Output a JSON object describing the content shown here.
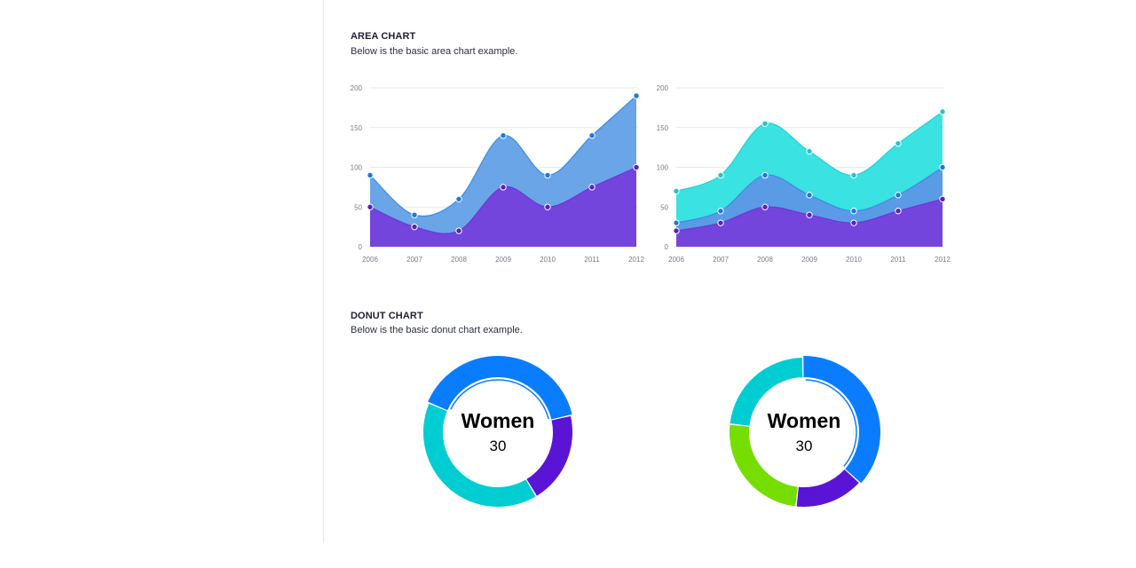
{
  "area_section": {
    "title": "AREA CHART",
    "description": "Below is the basic area chart example."
  },
  "donut_section": {
    "title": "DONUT CHART",
    "description": "Below is the basic donut chart example."
  },
  "chart_data": [
    {
      "type": "area",
      "x": [
        "2006",
        "2007",
        "2008",
        "2009",
        "2010",
        "2011",
        "2012"
      ],
      "ylim": [
        0,
        200
      ],
      "yticks": [
        0,
        50,
        100,
        150,
        200
      ],
      "grid": true,
      "series": [
        {
          "values": [
            90,
            40,
            60,
            140,
            90,
            140,
            190
          ],
          "color": "#6aa5e8",
          "line": "#3c8ce0",
          "marker": "#1a7ae2"
        },
        {
          "values": [
            50,
            25,
            20,
            75,
            50,
            75,
            100
          ],
          "color": "#7445dd",
          "line": "#6a36d8",
          "marker": "#5a1fc7"
        }
      ]
    },
    {
      "type": "area",
      "x": [
        "2006",
        "2007",
        "2008",
        "2009",
        "2010",
        "2011",
        "2012"
      ],
      "ylim": [
        0,
        200
      ],
      "yticks": [
        0,
        50,
        100,
        150,
        200
      ],
      "grid": true,
      "series": [
        {
          "values": [
            70,
            90,
            155,
            120,
            90,
            130,
            170
          ],
          "color": "#3ae2e2",
          "line": "#22d2d6",
          "marker": "#1fc6cc"
        },
        {
          "values": [
            30,
            45,
            90,
            65,
            45,
            65,
            100
          ],
          "color": "#5a9be6",
          "line": "#3c8ce0",
          "marker": "#1a7ae2"
        },
        {
          "values": [
            20,
            30,
            50,
            40,
            30,
            45,
            60
          ],
          "color": "#7445dd",
          "line": "#6a36d8",
          "marker": "#5a1fc7"
        }
      ]
    },
    {
      "type": "pie",
      "variant": "donut",
      "center_label": "Women",
      "center_value": "30",
      "slices": [
        {
          "value": 40,
          "color": "#0a7cff"
        },
        {
          "value": 20,
          "color": "#5a14d6"
        },
        {
          "value": 40,
          "color": "#00cdd2"
        }
      ],
      "highlight": {
        "color": "#0a7cff"
      }
    },
    {
      "type": "pie",
      "variant": "donut",
      "center_label": "Women",
      "center_value": "30",
      "slices": [
        {
          "value": 37,
          "color": "#0a7cff"
        },
        {
          "value": 15,
          "color": "#5a14d6"
        },
        {
          "value": 25,
          "color": "#75dd00"
        },
        {
          "value": 23,
          "color": "#00cdd2"
        }
      ],
      "highlight": {
        "color": "#0a7cff"
      }
    }
  ]
}
